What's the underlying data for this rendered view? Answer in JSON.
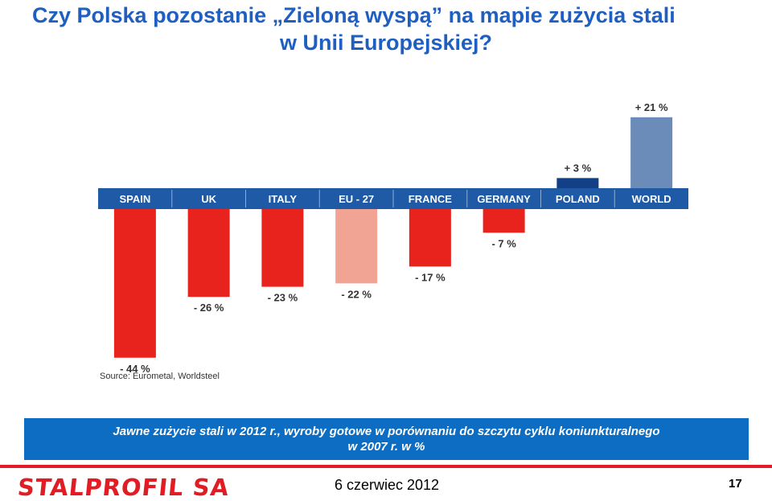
{
  "slide": {
    "title_line1": "Czy Polska pozostanie „Zieloną wyspą” na mapie zużycia stali",
    "title_line2": "w Unii Europejskiej?",
    "caption_line1": "Jawne zużycie stali w 2012 r., wyroby gotowe w porównaniu do szczytu cyklu koniunkturalnego",
    "caption_line2": "w 2007 r. w %",
    "logo_text": "STALPROFIL SA",
    "date": "6 czerwiec 2012",
    "page_number": "17"
  },
  "chart_data": {
    "type": "bar",
    "title": "",
    "categories": [
      "SPAIN",
      "UK",
      "ITALY",
      "EU - 27",
      "FRANCE",
      "GERMANY",
      "POLAND",
      "WORLD"
    ],
    "values": [
      -44,
      -26,
      -23,
      -22,
      -17,
      -7,
      3,
      21
    ],
    "labels": [
      "- 44 %",
      "- 26 %",
      "- 23 %",
      "- 22 %",
      "- 17 %",
      "- 7 %",
      "+ 3 %",
      "+ 21 %"
    ],
    "colors": [
      "#e8231d",
      "#e8231d",
      "#e8231d",
      "#f2a494",
      "#e8231d",
      "#e8231d",
      "#123f86",
      "#6b8bb8"
    ],
    "unit": "%",
    "ylim": [
      -44,
      21
    ],
    "source": "Source: Eurometal, Worldsteel",
    "category_band_color": "#1e5aa6"
  }
}
